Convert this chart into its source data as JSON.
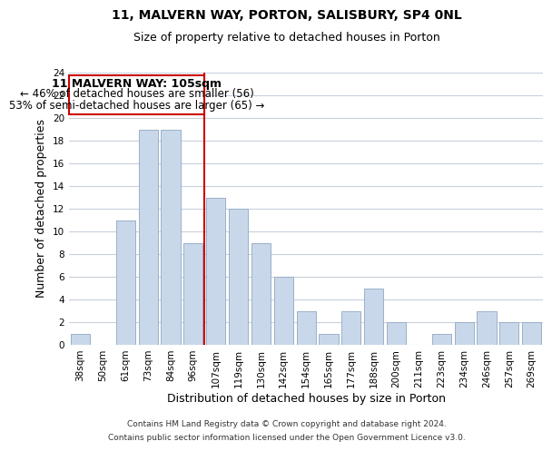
{
  "title": "11, MALVERN WAY, PORTON, SALISBURY, SP4 0NL",
  "subtitle": "Size of property relative to detached houses in Porton",
  "xlabel": "Distribution of detached houses by size in Porton",
  "ylabel": "Number of detached properties",
  "categories": [
    "38sqm",
    "50sqm",
    "61sqm",
    "73sqm",
    "84sqm",
    "96sqm",
    "107sqm",
    "119sqm",
    "130sqm",
    "142sqm",
    "154sqm",
    "165sqm",
    "177sqm",
    "188sqm",
    "200sqm",
    "211sqm",
    "223sqm",
    "234sqm",
    "246sqm",
    "257sqm",
    "269sqm"
  ],
  "values": [
    1,
    0,
    11,
    19,
    19,
    9,
    13,
    12,
    9,
    6,
    3,
    1,
    3,
    5,
    2,
    0,
    1,
    2,
    3,
    2,
    2
  ],
  "bar_color": "#c8d8ea",
  "bar_edge_color": "#9ab0c8",
  "highlight_index": 6,
  "highlight_line_color": "#cc0000",
  "ylim": [
    0,
    24
  ],
  "yticks": [
    0,
    2,
    4,
    6,
    8,
    10,
    12,
    14,
    16,
    18,
    20,
    22,
    24
  ],
  "annotation_title": "11 MALVERN WAY: 105sqm",
  "annotation_line1": "← 46% of detached houses are smaller (56)",
  "annotation_line2": "53% of semi-detached houses are larger (65) →",
  "annotation_box_color": "#ffffff",
  "annotation_box_edge": "#cc0000",
  "footer1": "Contains HM Land Registry data © Crown copyright and database right 2024.",
  "footer2": "Contains public sector information licensed under the Open Government Licence v3.0.",
  "bg_color": "#ffffff",
  "grid_color": "#c8d0dc",
  "title_fontsize": 10,
  "subtitle_fontsize": 9,
  "axis_label_fontsize": 9,
  "tick_fontsize": 7.5,
  "annotation_title_fontsize": 9,
  "annotation_text_fontsize": 8.5,
  "footer_fontsize": 6.5
}
